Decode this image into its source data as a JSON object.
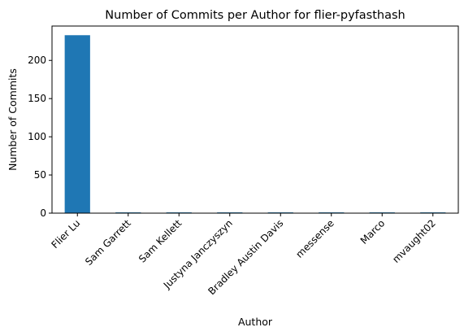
{
  "chart_data": {
    "type": "bar",
    "title": "Number of Commits per Author for flier-pyfasthash",
    "xlabel": "Author",
    "ylabel": "Number of Commits",
    "categories": [
      "Flier Lu",
      "Sam Garrett",
      "Sam Kellett",
      "Justyna Janczyszyn",
      "Bradley Austin Davis",
      "messense",
      "Marco",
      "mvaught02"
    ],
    "values": [
      233,
      1,
      1,
      1,
      1,
      1,
      1,
      1
    ],
    "ylim": [
      0,
      245
    ],
    "yticks": [
      0,
      50,
      100,
      150,
      200
    ],
    "grid": false,
    "legend": "none",
    "bar_color": "#1f77b4"
  }
}
